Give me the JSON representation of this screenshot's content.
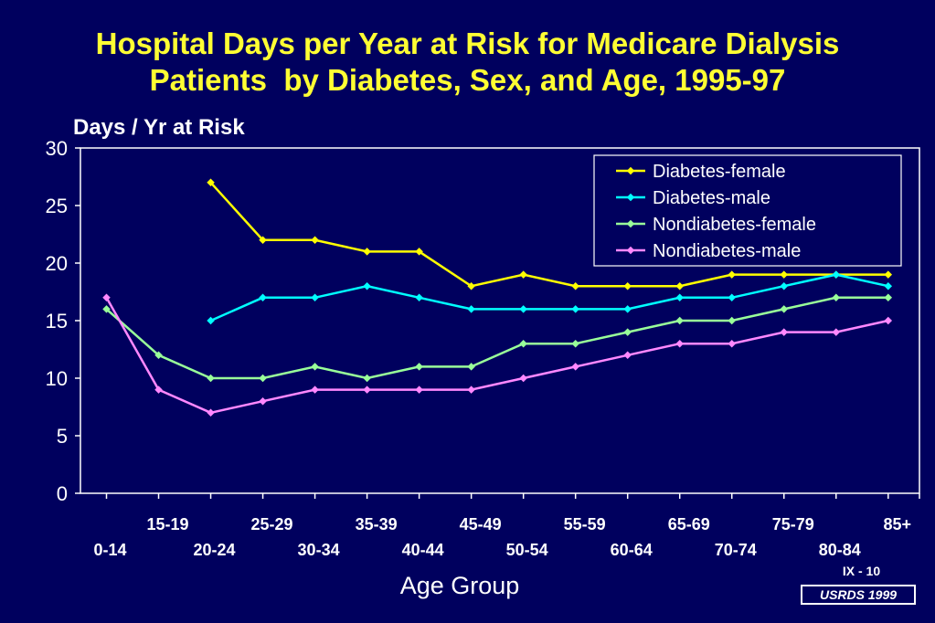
{
  "slide": {
    "title_line1": "Hospital Days per Year at Risk for Medicare Dialysis",
    "title_line2": "Patients  by Diabetes, Sex, and Age, 1995-97",
    "slide_number": "IX - 10",
    "source": "USRDS 1999"
  },
  "chart_data": {
    "type": "line",
    "title": "Hospital Days per Year at Risk for Medicare Dialysis Patients  by Diabetes, Sex, and Age, 1995-97",
    "ylabel": "Days / Yr at Risk",
    "xlabel": "Age Group",
    "ylim": [
      0,
      30
    ],
    "yticks": [
      0,
      5,
      10,
      15,
      20,
      25,
      30
    ],
    "grid": false,
    "legend_position": "top-right",
    "categories": [
      "0-14",
      "15-19",
      "20-24",
      "25-29",
      "30-34",
      "35-39",
      "40-44",
      "45-49",
      "50-54",
      "55-59",
      "60-64",
      "65-69",
      "70-74",
      "75-79",
      "80-84",
      "85+"
    ],
    "series": [
      {
        "name": "Diabetes-female",
        "color": "#ffff00",
        "values": [
          null,
          null,
          27,
          22,
          22,
          21,
          21,
          18,
          19,
          18,
          18,
          18,
          19,
          19,
          19,
          19
        ]
      },
      {
        "name": "Diabetes-male",
        "color": "#00ffff",
        "values": [
          null,
          null,
          15,
          17,
          17,
          18,
          17,
          16,
          16,
          16,
          16,
          17,
          17,
          18,
          19,
          18
        ]
      },
      {
        "name": "Nondiabetes-female",
        "color": "#99ff99",
        "values": [
          16,
          12,
          10,
          10,
          11,
          10,
          11,
          11,
          13,
          13,
          14,
          15,
          15,
          16,
          17,
          17
        ]
      },
      {
        "name": "Nondiabetes-male",
        "color": "#ff88ff",
        "values": [
          17,
          9,
          7,
          8,
          9,
          9,
          9,
          9,
          10,
          11,
          12,
          13,
          13,
          14,
          14,
          15
        ]
      }
    ]
  }
}
